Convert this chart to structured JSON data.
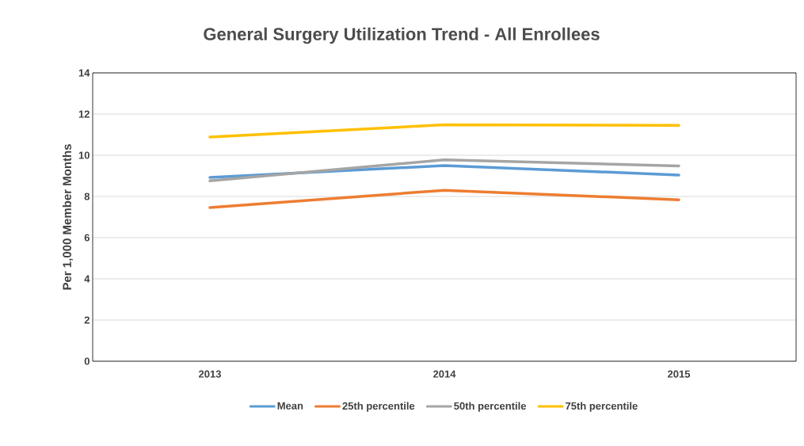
{
  "chart_data": {
    "type": "line",
    "title": "General Surgery Utilization Trend - All Enrollees",
    "ylabel": "Per 1,000 Member Months",
    "categories": [
      "2013",
      "2014",
      "2015"
    ],
    "series": [
      {
        "name": "Mean",
        "color": "#5b9bd5",
        "values": [
          8.92,
          9.5,
          9.04
        ]
      },
      {
        "name": "25th percentile",
        "color": "#ed7d31",
        "values": [
          7.46,
          8.3,
          7.84
        ]
      },
      {
        "name": "50th percentile",
        "color": "#a5a5a5",
        "values": [
          8.76,
          9.78,
          9.48
        ]
      },
      {
        "name": "75th percentile",
        "color": "#ffc000",
        "values": [
          10.88,
          11.48,
          11.45
        ]
      }
    ],
    "ylim": [
      0,
      14
    ],
    "yticks": [
      0,
      2,
      4,
      6,
      8,
      10,
      12,
      14
    ],
    "grid": "y",
    "legend": "bottom",
    "marker": "none",
    "line_style": "solid"
  }
}
